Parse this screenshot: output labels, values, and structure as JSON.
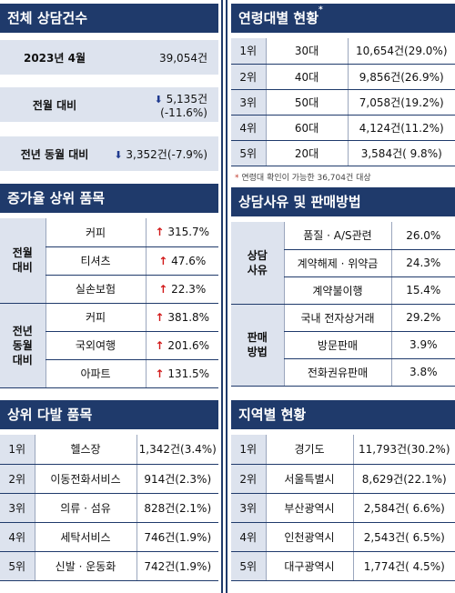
{
  "total": {
    "title": "전체 상담건수",
    "period": "2023년 4월",
    "count": "39,054건",
    "mom_label": "전월 대비",
    "mom_value": "5,135건(-11.6%)",
    "yoy_label": "전년 동월 대비",
    "yoy_value": "3,352건(-7.9%)"
  },
  "increase": {
    "title": "증가율 상위 품목",
    "groups": [
      {
        "label": "전월\n대비",
        "items": [
          {
            "name": "커피",
            "pct": "315.7%"
          },
          {
            "name": "티셔츠",
            "pct": "47.6%"
          },
          {
            "name": "실손보험",
            "pct": "22.3%"
          }
        ]
      },
      {
        "label": "전년\n동월\n대비",
        "items": [
          {
            "name": "커피",
            "pct": "381.8%"
          },
          {
            "name": "국외여행",
            "pct": "201.6%"
          },
          {
            "name": "아파트",
            "pct": "131.5%"
          }
        ]
      }
    ]
  },
  "frequent": {
    "title": "상위 다발 품목",
    "rows": [
      {
        "rank": "1위",
        "name": "헬스장",
        "value": "1,342건(3.4%)"
      },
      {
        "rank": "2위",
        "name": "이동전화서비스",
        "value": "914건(2.3%)"
      },
      {
        "rank": "3위",
        "name": "의류 · 섬유",
        "value": "828건(2.1%)"
      },
      {
        "rank": "4위",
        "name": "세탁서비스",
        "value": "746건(1.9%)"
      },
      {
        "rank": "5위",
        "name": "신발 · 운동화",
        "value": "742건(1.9%)"
      }
    ]
  },
  "age": {
    "title": "연령대별 현황",
    "title_mark": "*",
    "rows": [
      {
        "rank": "1위",
        "group": "30대",
        "value": "10,654건(29.0%)"
      },
      {
        "rank": "2위",
        "group": "40대",
        "value": "9,856건(26.9%)"
      },
      {
        "rank": "3위",
        "group": "50대",
        "value": "7,058건(19.2%)"
      },
      {
        "rank": "4위",
        "group": "60대",
        "value": "4,124건(11.2%)"
      },
      {
        "rank": "5위",
        "group": "20대",
        "value": "3,584건( 9.8%)"
      }
    ],
    "note_mark": "*",
    "note": "연령대 확인이 가능한 36,704건 대상"
  },
  "reason": {
    "title": "상담사유 및 판매방법",
    "groups": [
      {
        "label": "상담\n사유",
        "items": [
          {
            "name": "품질 · A/S관련",
            "pct": "26.0%"
          },
          {
            "name": "계약해제 · 위약금",
            "pct": "24.3%"
          },
          {
            "name": "계약불이행",
            "pct": "15.4%"
          }
        ]
      },
      {
        "label": "판매\n방법",
        "items": [
          {
            "name": "국내 전자상거래",
            "pct": "29.2%"
          },
          {
            "name": "방문판매",
            "pct": "3.9%"
          },
          {
            "name": "전화권유판매",
            "pct": "3.8%"
          }
        ]
      }
    ]
  },
  "region": {
    "title": "지역별 현황",
    "rows": [
      {
        "rank": "1위",
        "name": "경기도",
        "value": "11,793건(30.2%)"
      },
      {
        "rank": "2위",
        "name": "서울특별시",
        "value": "8,629건(22.1%)"
      },
      {
        "rank": "3위",
        "name": "부산광역시",
        "value": "2,584건( 6.6%)"
      },
      {
        "rank": "4위",
        "name": "인천광역시",
        "value": "2,543건( 6.5%)"
      },
      {
        "rank": "5위",
        "name": "대구광역시",
        "value": "1,774건( 4.5%)"
      }
    ]
  },
  "icons": {
    "up": "red-up-arrow",
    "down": "blue-down-arrow"
  },
  "colors": {
    "header": "#1f3a6b",
    "shade": "#dde3ee",
    "up": "#d21a1a",
    "down": "#1f3a8f"
  }
}
